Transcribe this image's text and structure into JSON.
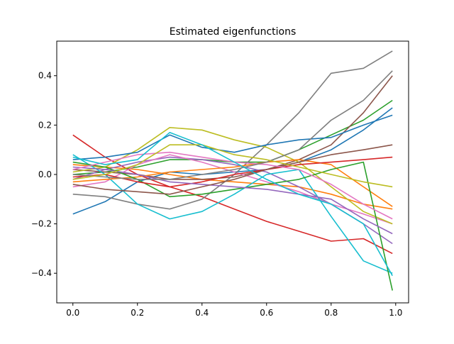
{
  "chart_data": {
    "type": "line",
    "title": "Estimated eigenfunctions",
    "xlabel": "",
    "ylabel": "",
    "xlim": [
      -0.05,
      1.04
    ],
    "ylim": [
      -0.52,
      0.54
    ],
    "xticks": [
      0.0,
      0.2,
      0.4,
      0.6,
      0.8,
      1.0
    ],
    "yticks": [
      -0.4,
      -0.2,
      0.0,
      0.2,
      0.4
    ],
    "grid": false,
    "x": [
      0.0,
      0.1,
      0.2,
      0.3,
      0.4,
      0.5,
      0.6,
      0.7,
      0.8,
      0.9,
      0.99
    ],
    "palette": [
      "#1f77b4",
      "#ff7f0e",
      "#2ca02c",
      "#d62728",
      "#9467bd",
      "#8c564b",
      "#e377c2",
      "#7f7f7f",
      "#bcbd22",
      "#17becf"
    ],
    "series": [
      {
        "values": [
          -0.16,
          -0.11,
          -0.03,
          0.01,
          0.0,
          0.01,
          0.02,
          0.05,
          0.1,
          0.18,
          0.27
        ]
      },
      {
        "values": [
          0.04,
          0.03,
          0.02,
          0.0,
          -0.02,
          -0.03,
          -0.04,
          -0.05,
          -0.08,
          -0.12,
          -0.14
        ]
      },
      {
        "values": [
          0.0,
          0.01,
          0.03,
          0.06,
          0.06,
          0.05,
          0.05,
          0.1,
          0.16,
          0.22,
          0.3
        ]
      },
      {
        "values": [
          0.16,
          0.07,
          0.0,
          -0.05,
          -0.09,
          -0.14,
          -0.19,
          -0.23,
          -0.27,
          -0.26,
          -0.32
        ]
      },
      {
        "values": [
          -0.02,
          0.02,
          0.05,
          0.07,
          0.06,
          0.04,
          0.01,
          -0.05,
          -0.12,
          -0.2,
          -0.28
        ]
      },
      {
        "values": [
          0.02,
          0.01,
          0.0,
          -0.02,
          -0.02,
          -0.01,
          0.02,
          0.06,
          0.12,
          0.25,
          0.4
        ]
      },
      {
        "values": [
          -0.05,
          -0.03,
          0.04,
          0.08,
          0.05,
          0.01,
          -0.03,
          -0.07,
          -0.12,
          -0.16,
          -0.2
        ]
      },
      {
        "values": [
          -0.08,
          -0.09,
          -0.12,
          -0.14,
          -0.1,
          0.0,
          0.12,
          0.25,
          0.41,
          0.43,
          0.5
        ]
      },
      {
        "values": [
          0.01,
          0.03,
          0.1,
          0.19,
          0.18,
          0.14,
          0.11,
          0.05,
          -0.05,
          -0.15,
          -0.2
        ]
      },
      {
        "values": [
          0.08,
          0.0,
          -0.12,
          -0.18,
          -0.15,
          -0.08,
          0.0,
          0.02,
          -0.17,
          -0.35,
          -0.4
        ]
      },
      {
        "values": [
          0.06,
          0.07,
          0.09,
          0.16,
          0.11,
          0.09,
          0.12,
          0.14,
          0.15,
          0.2,
          0.24
        ]
      },
      {
        "values": [
          -0.03,
          -0.02,
          -0.01,
          0.01,
          0.02,
          0.03,
          0.05,
          0.06,
          0.04,
          -0.05,
          -0.13
        ]
      },
      {
        "values": [
          0.05,
          0.03,
          -0.02,
          -0.09,
          -0.08,
          -0.06,
          -0.04,
          -0.02,
          0.02,
          0.05,
          -0.47
        ]
      },
      {
        "values": [
          -0.01,
          0.0,
          -0.03,
          -0.05,
          -0.03,
          0.0,
          0.02,
          0.04,
          0.05,
          0.06,
          0.07
        ]
      },
      {
        "values": [
          0.03,
          0.02,
          0.0,
          -0.03,
          -0.04,
          -0.05,
          -0.06,
          -0.08,
          -0.1,
          -0.18,
          -0.24
        ]
      },
      {
        "values": [
          -0.04,
          -0.06,
          -0.07,
          -0.08,
          -0.05,
          -0.02,
          0.02,
          0.05,
          0.08,
          0.1,
          0.12
        ]
      },
      {
        "values": [
          0.02,
          0.05,
          0.08,
          0.09,
          0.07,
          0.05,
          0.04,
          0.02,
          -0.04,
          -0.12,
          -0.18
        ]
      },
      {
        "values": [
          0.0,
          -0.01,
          -0.02,
          -0.02,
          0.0,
          0.02,
          0.05,
          0.1,
          0.22,
          0.3,
          0.42
        ]
      },
      {
        "values": [
          -0.02,
          0.0,
          0.04,
          0.12,
          0.12,
          0.08,
          0.06,
          0.03,
          0.0,
          -0.03,
          -0.05
        ]
      },
      {
        "values": [
          0.07,
          0.04,
          0.06,
          0.17,
          0.12,
          0.05,
          -0.02,
          -0.08,
          -0.12,
          -0.2,
          -0.41
        ]
      }
    ]
  }
}
